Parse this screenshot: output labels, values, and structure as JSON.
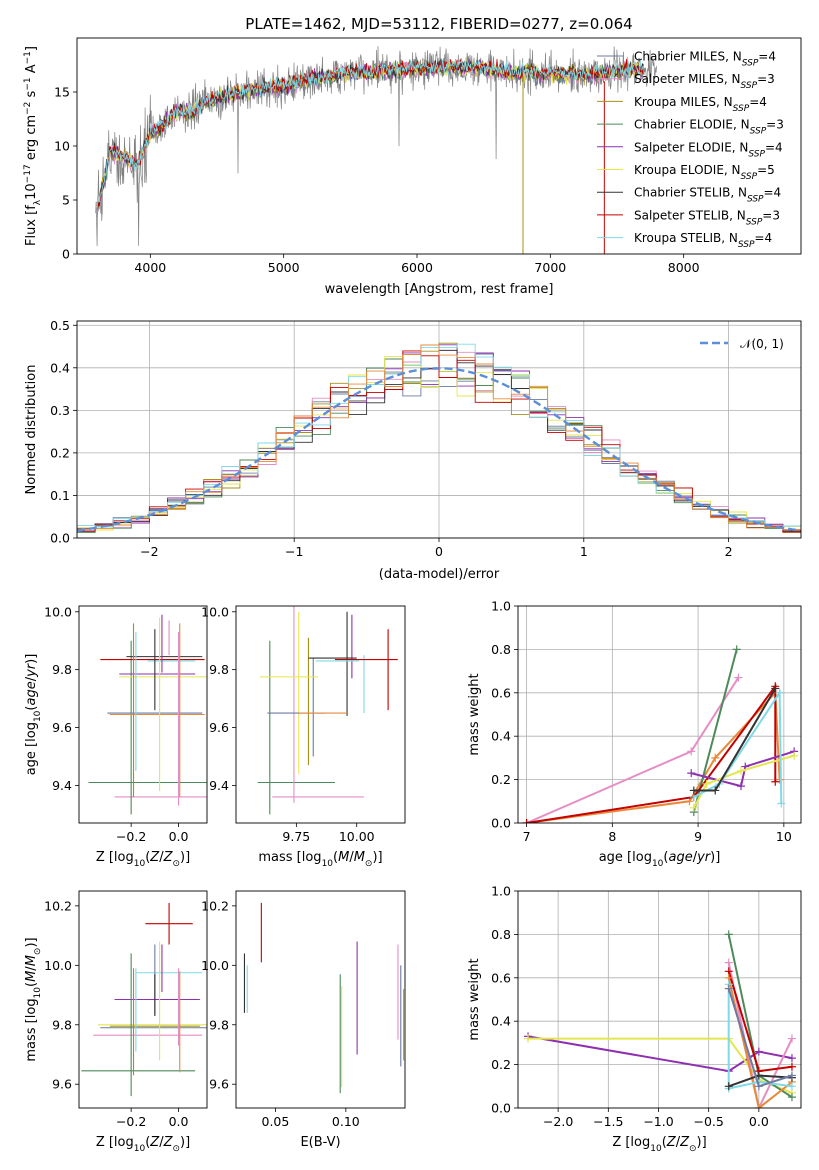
{
  "chart_data": [
    {
      "type": "line",
      "title": "PLATE=1462, MJD=53112, FIBERID=0277, z=0.064",
      "xlabel": "wavelength [Angstrom, rest frame]",
      "ylabel": "Flux [fλ10⁻¹⁷ erg cm⁻² s⁻¹ A⁻¹]",
      "xlim": [
        3450,
        8880
      ],
      "ylim": [
        0,
        20
      ],
      "xticks": [
        4000,
        5000,
        6000,
        7000,
        8000
      ],
      "yticks": [
        0,
        5,
        10,
        15
      ],
      "legend_position": "top-right",
      "grid": false,
      "spectrum_anchors": {
        "x": [
          3600,
          3700,
          3800,
          3900,
          3950,
          4000,
          4100,
          4200,
          4300,
          4400,
          4600,
          4800,
          5000,
          5200,
          5500,
          5800,
          6000,
          6300,
          6500,
          6700,
          7000,
          7300,
          7600,
          7800
        ],
        "y": [
          4,
          9.5,
          9,
          8.2,
          9.8,
          11,
          12,
          13.2,
          13,
          14,
          14.8,
          15.2,
          15.6,
          16.2,
          16.8,
          17,
          17.2,
          17.3,
          17.2,
          16.8,
          16.7,
          16.6,
          17.1,
          16.9
        ]
      },
      "series": [
        {
          "name": "Chabrier MILES, N_SSP=4",
          "color": "#6c7ba3"
        },
        {
          "name": "Salpeter MILES, N_SSP=3",
          "color": "#e58ec3"
        },
        {
          "name": "Kroupa MILES, N_SSP=4",
          "color": "#a6901a"
        },
        {
          "name": "Chabrier ELODIE, N_SSP=3",
          "color": "#4d8a5a"
        },
        {
          "name": "Salpeter ELODIE, N_SSP=4",
          "color": "#8e30b0"
        },
        {
          "name": "Kroupa ELODIE, N_SSP=5",
          "color": "#e4e64c"
        },
        {
          "name": "Chabrier STELIB, N_SSP=4",
          "color": "#333333"
        },
        {
          "name": "Salpeter STELIB, N_SSP=3",
          "color": "#c40000"
        },
        {
          "name": "Kroupa STELIB, N_SSP=4",
          "color": "#7fd9e6"
        }
      ]
    },
    {
      "type": "bar",
      "xlabel": "(data-model)/error",
      "ylabel": "Normed distribution",
      "xlim": [
        -2.5,
        2.5
      ],
      "ylim": [
        0,
        0.51
      ],
      "xticks": [
        -2,
        -1,
        0,
        1,
        2
      ],
      "yticks": [
        0.0,
        0.1,
        0.2,
        0.3,
        0.4,
        0.5
      ],
      "grid": true,
      "legend_position": "top-right",
      "gaussian_label": "𝒩(0, 1)",
      "gaussian_color": "#5b8fd9",
      "bin_width": 0.125,
      "series_colors": [
        "#6c7ba3",
        "#e58ec3",
        "#a6901a",
        "#4d8a5a",
        "#8e30b0",
        "#e4e64c",
        "#333333",
        "#c40000",
        "#7fd9e6",
        "#e8893a"
      ]
    },
    {
      "type": "scatter",
      "xlabel": "Z [log10(Z/Z⊙)]",
      "ylabel": "age  [log10(age/yr)]",
      "xlim": [
        -0.42,
        0.12
      ],
      "ylim": [
        9.27,
        10.02
      ],
      "xticks": [
        -0.2,
        0.0
      ],
      "xticklabels": [
        "−0.2",
        "0.0"
      ],
      "yticks": [
        9.4,
        9.6,
        9.8,
        10.0
      ],
      "points": [
        {
          "x": -0.08,
          "xerr": 0.3,
          "y": 9.41,
          "yerr": 0.0,
          "color": "#4d8a5a"
        },
        {
          "x": -0.05,
          "xerr": 0.22,
          "y": 9.36,
          "yerr": 0.0,
          "color": "#e58ec3"
        },
        {
          "x": -0.2,
          "xerr": 0.0,
          "y": 9.6,
          "yerr": 0.3,
          "color": "#4d8a5a"
        },
        {
          "x": -0.1,
          "xerr": 0.2,
          "y": 9.65,
          "yerr": 0.0,
          "color": "#6c7ba3"
        },
        {
          "x": -0.09,
          "xerr": 0.2,
          "y": 9.645,
          "yerr": 0.0,
          "color": "#e8893a"
        },
        {
          "x": -0.05,
          "xerr": 0.2,
          "y": 9.775,
          "yerr": 0.0,
          "color": "#e4e64c"
        },
        {
          "x": -0.09,
          "xerr": 0.16,
          "y": 9.785,
          "yerr": 0.0,
          "color": "#8e30b0"
        },
        {
          "x": -0.11,
          "xerr": 0.22,
          "y": 9.835,
          "yerr": 0.0,
          "color": "#c40000"
        },
        {
          "x": -0.06,
          "xerr": 0.16,
          "y": 9.845,
          "yerr": 0.0,
          "color": "#333333"
        },
        {
          "x": -0.03,
          "xerr": 0.1,
          "y": 9.83,
          "yerr": 0.0,
          "color": "#7fd9e6"
        },
        {
          "x": -0.19,
          "xerr": 0.0,
          "y": 9.66,
          "yerr": 0.3,
          "color": "#a6901a"
        },
        {
          "x": -0.18,
          "xerr": 0.0,
          "y": 9.69,
          "yerr": 0.24,
          "color": "#7fd9e6"
        },
        {
          "x": -0.1,
          "xerr": 0.0,
          "y": 9.8,
          "yerr": 0.14,
          "color": "#333333"
        },
        {
          "x": -0.08,
          "xerr": 0.0,
          "y": 9.68,
          "yerr": 0.3,
          "color": "#e4e64c"
        },
        {
          "x": -0.07,
          "xerr": 0.0,
          "y": 9.89,
          "yerr": 0.1,
          "color": "#8e30b0"
        },
        {
          "x": -0.04,
          "xerr": 0.0,
          "y": 9.91,
          "yerr": 0.06,
          "color": "#e58ec3"
        },
        {
          "x": 0.0,
          "xerr": 0.0,
          "y": 9.63,
          "yerr": 0.3,
          "color": "#e58ec3"
        },
        {
          "x": 0.005,
          "xerr": 0.0,
          "y": 9.66,
          "yerr": 0.3,
          "color": "#e8893a"
        }
      ]
    },
    {
      "type": "scatter",
      "xlabel": "mass [log10(M/M⊙)]",
      "xlim": [
        9.5,
        10.2
      ],
      "ylim": [
        9.27,
        10.02
      ],
      "xticks": [
        9.75,
        10.0
      ],
      "xticklabels": [
        "9.75",
        "10.00"
      ],
      "yticks": [
        9.4,
        9.6,
        9.8,
        10.0
      ],
      "points": [
        {
          "x": 9.75,
          "xerr": 0.16,
          "y": 9.41,
          "yerr": 0.0,
          "color": "#4d8a5a"
        },
        {
          "x": 9.84,
          "xerr": 0.19,
          "y": 9.36,
          "yerr": 0.0,
          "color": "#e58ec3"
        },
        {
          "x": 9.64,
          "xerr": 0.0,
          "y": 9.6,
          "yerr": 0.3,
          "color": "#4d8a5a"
        },
        {
          "x": 9.74,
          "xerr": 0.0,
          "y": 9.69,
          "yerr": 0.35,
          "color": "#e58ec3"
        },
        {
          "x": 9.76,
          "xerr": 0.0,
          "y": 9.72,
          "yerr": 0.28,
          "color": "#e4e64c"
        },
        {
          "x": 9.8,
          "xerr": 0.0,
          "y": 9.69,
          "yerr": 0.22,
          "color": "#a6901a"
        },
        {
          "x": 9.82,
          "xerr": 0.0,
          "y": 9.67,
          "yerr": 0.17,
          "color": "#6c7ba3"
        },
        {
          "x": 9.96,
          "xerr": 0.0,
          "y": 9.82,
          "yerr": 0.18,
          "color": "#333333"
        },
        {
          "x": 9.98,
          "xerr": 0.0,
          "y": 9.88,
          "yerr": 0.11,
          "color": "#8e30b0"
        },
        {
          "x": 10.13,
          "xerr": 0.0,
          "y": 9.8,
          "yerr": 0.14,
          "color": "#c40000"
        },
        {
          "x": 10.03,
          "xerr": 0.0,
          "y": 9.75,
          "yerr": 0.1,
          "color": "#7fd9e6"
        },
        {
          "x": 9.75,
          "xerr": 0.12,
          "y": 9.65,
          "yerr": 0.0,
          "color": "#6c7ba3"
        },
        {
          "x": 9.72,
          "xerr": 0.12,
          "y": 9.775,
          "yerr": 0.0,
          "color": "#e4e64c"
        },
        {
          "x": 9.9,
          "xerr": 0.1,
          "y": 9.84,
          "yerr": 0.0,
          "color": "#333333"
        },
        {
          "x": 10.04,
          "xerr": 0.13,
          "y": 9.835,
          "yerr": 0.0,
          "color": "#c40000"
        },
        {
          "x": 9.92,
          "xerr": 0.09,
          "y": 9.83,
          "yerr": 0.0,
          "color": "#7fd9e6"
        },
        {
          "x": 9.86,
          "xerr": 0.1,
          "y": 9.65,
          "yerr": 0.0,
          "color": "#e8893a"
        }
      ]
    },
    {
      "type": "line",
      "xlabel": "age  [log10(age/yr)]",
      "ylabel": "mass weight",
      "xlim": [
        6.9,
        10.2
      ],
      "ylim": [
        0,
        1
      ],
      "xticks": [
        7,
        8,
        9,
        10
      ],
      "yticks": [
        0.0,
        0.2,
        0.4,
        0.6,
        0.8,
        1.0
      ],
      "grid": true,
      "series": [
        {
          "color": "#e8893a",
          "x": [
            7.0,
            8.9,
            9.2,
            9.9,
            9.95
          ],
          "y": [
            0.0,
            0.1,
            0.3,
            0.6,
            0.2
          ]
        },
        {
          "color": "#e58ec3",
          "x": [
            7.0,
            8.92,
            9.47
          ],
          "y": [
            0.0,
            0.33,
            0.67
          ]
        },
        {
          "color": "#4d8a5a",
          "x": [
            8.95,
            9.45
          ],
          "y": [
            0.05,
            0.8
          ]
        },
        {
          "color": "#c40000",
          "x": [
            7.0,
            8.95,
            9.9,
            9.9
          ],
          "y": [
            0.0,
            0.12,
            0.63,
            0.19
          ]
        },
        {
          "color": "#8e30b0",
          "x": [
            8.92,
            9.5,
            9.55,
            10.12
          ],
          "y": [
            0.23,
            0.17,
            0.26,
            0.33
          ]
        },
        {
          "color": "#e4e64c",
          "x": [
            8.95,
            9.1,
            9.5,
            10.12
          ],
          "y": [
            0.07,
            0.18,
            0.24,
            0.31
          ]
        },
        {
          "color": "#7fd9e6",
          "x": [
            8.95,
            9.25,
            9.95,
            9.97
          ],
          "y": [
            0.12,
            0.18,
            0.6,
            0.09
          ]
        },
        {
          "color": "#333333",
          "x": [
            8.95,
            9.2,
            9.9
          ],
          "y": [
            0.15,
            0.15,
            0.62
          ]
        }
      ]
    },
    {
      "type": "scatter",
      "xlabel": "Z [log10(Z/Z⊙)]",
      "ylabel": "mass [log10(M/M⊙)]",
      "xlim": [
        -0.42,
        0.12
      ],
      "ylim": [
        9.52,
        10.25
      ],
      "xticks": [
        -0.2,
        0.0
      ],
      "xticklabels": [
        "−0.2",
        "0.0"
      ],
      "yticks": [
        9.6,
        9.8,
        10.0,
        10.2
      ],
      "points": [
        {
          "x": -0.04,
          "xerr": 0.1,
          "y": 10.14,
          "yerr": 0.07,
          "color": "#c40000"
        },
        {
          "x": -0.04,
          "xerr": 0.14,
          "y": 9.975,
          "yerr": 0.0,
          "color": "#7fd9e6"
        },
        {
          "x": -0.1,
          "xerr": 0.0,
          "y": 9.95,
          "yerr": 0.12,
          "color": "#6c7ba3"
        },
        {
          "x": -0.09,
          "xerr": 0.18,
          "y": 9.885,
          "yerr": 0.0,
          "color": "#8e30b0"
        },
        {
          "x": -0.09,
          "xerr": 0.25,
          "y": 9.8,
          "yerr": 0.0,
          "color": "#e4e64c"
        },
        {
          "x": -0.1,
          "xerr": 0.19,
          "y": 9.795,
          "yerr": 0.0,
          "color": "#a6901a"
        },
        {
          "x": -0.1,
          "xerr": 0.23,
          "y": 9.79,
          "yerr": 0.0,
          "color": "#6c7ba3"
        },
        {
          "x": -0.13,
          "xerr": 0.23,
          "y": 9.765,
          "yerr": 0.0,
          "color": "#e58ec3"
        },
        {
          "x": -0.17,
          "xerr": 0.24,
          "y": 9.645,
          "yerr": 0.0,
          "color": "#4d8a5a"
        },
        {
          "x": -0.2,
          "xerr": 0.0,
          "y": 9.8,
          "yerr": 0.24,
          "color": "#4d8a5a"
        },
        {
          "x": -0.19,
          "xerr": 0.0,
          "y": 9.81,
          "yerr": 0.18,
          "color": "#a6901a"
        },
        {
          "x": -0.18,
          "xerr": 0.0,
          "y": 9.85,
          "yerr": 0.14,
          "color": "#7fd9e6"
        },
        {
          "x": -0.08,
          "xerr": 0.0,
          "y": 9.88,
          "yerr": 0.2,
          "color": "#e4e64c"
        },
        {
          "x": -0.07,
          "xerr": 0.0,
          "y": 9.99,
          "yerr": 0.08,
          "color": "#8e30b0"
        },
        {
          "x": -0.1,
          "xerr": 0.0,
          "y": 9.9,
          "yerr": 0.07,
          "color": "#333333"
        },
        {
          "x": 0.0,
          "xerr": 0.0,
          "y": 9.86,
          "yerr": 0.13,
          "color": "#e58ec3"
        },
        {
          "x": 0.005,
          "xerr": 0.0,
          "y": 9.81,
          "yerr": 0.17,
          "color": "#e8893a"
        }
      ]
    },
    {
      "type": "scatter",
      "xlabel": "E(B-V)",
      "xlim": [
        0.022,
        0.142
      ],
      "ylim": [
        9.52,
        10.25
      ],
      "xticks": [
        0.05,
        0.1
      ],
      "xticklabels": [
        "0.05",
        "0.10"
      ],
      "yticks": [
        9.6,
        9.8,
        10.0,
        10.2
      ],
      "points": [
        {
          "x": 0.028,
          "xerr": 0.0,
          "y": 9.94,
          "yerr": 0.1,
          "color": "#333333"
        },
        {
          "x": 0.03,
          "xerr": 0.0,
          "y": 9.92,
          "yerr": 0.08,
          "color": "#7fd9e6"
        },
        {
          "x": 0.04,
          "xerr": 0.0,
          "y": 10.11,
          "yerr": 0.1,
          "color": "#c40000"
        },
        {
          "x": 0.096,
          "xerr": 0.0,
          "y": 9.77,
          "yerr": 0.2,
          "color": "#4d8a5a"
        },
        {
          "x": 0.097,
          "xerr": 0.0,
          "y": 9.76,
          "yerr": 0.17,
          "color": "#e4e64c"
        },
        {
          "x": 0.108,
          "xerr": 0.0,
          "y": 9.89,
          "yerr": 0.19,
          "color": "#8e30b0"
        },
        {
          "x": 0.137,
          "xerr": 0.0,
          "y": 9.91,
          "yerr": 0.16,
          "color": "#e58ec3"
        },
        {
          "x": 0.139,
          "xerr": 0.0,
          "y": 9.83,
          "yerr": 0.17,
          "color": "#6c7ba3"
        },
        {
          "x": 0.141,
          "xerr": 0.0,
          "y": 9.8,
          "yerr": 0.12,
          "color": "#e8893a"
        }
      ]
    },
    {
      "type": "line",
      "xlabel": "Z [log10(Z/Z⊙)]",
      "ylabel": "mass weight",
      "xlim": [
        -2.4,
        0.42
      ],
      "ylim": [
        0,
        1
      ],
      "xticks": [
        -2.0,
        -1.5,
        -1.0,
        -0.5,
        0.0
      ],
      "xticklabels": [
        "−2.0",
        "−1.5",
        "−1.0",
        "−0.5",
        "0.0"
      ],
      "yticks": [
        0.0,
        0.2,
        0.4,
        0.6,
        0.8,
        1.0
      ],
      "grid": true,
      "series": [
        {
          "color": "#8e30b0",
          "x": [
            -2.3,
            -0.3,
            0.0,
            0.33
          ],
          "y": [
            0.33,
            0.17,
            0.26,
            0.23
          ]
        },
        {
          "color": "#e4e64c",
          "x": [
            -2.3,
            -0.3,
            0.0,
            0.33
          ],
          "y": [
            0.32,
            0.32,
            0.13,
            0.07
          ]
        },
        {
          "color": "#4d8a5a",
          "x": [
            -0.3,
            0.0,
            0.33
          ],
          "y": [
            0.8,
            0.15,
            0.05
          ]
        },
        {
          "color": "#e58ec3",
          "x": [
            -0.3,
            0.0,
            0.33
          ],
          "y": [
            0.67,
            0.0,
            0.32
          ]
        },
        {
          "color": "#c40000",
          "x": [
            -0.3,
            0.0,
            0.33
          ],
          "y": [
            0.63,
            0.17,
            0.19
          ]
        },
        {
          "color": "#e8893a",
          "x": [
            -0.3,
            0.0,
            0.33
          ],
          "y": [
            0.6,
            0.0,
            0.12
          ]
        },
        {
          "color": "#7fd9e6",
          "x": [
            -0.3,
            -0.3,
            0.0,
            0.33
          ],
          "y": [
            0.57,
            0.09,
            0.12,
            0.1
          ]
        },
        {
          "color": "#333333",
          "x": [
            -0.3,
            0.0,
            0.33
          ],
          "y": [
            0.1,
            0.15,
            0.14
          ]
        },
        {
          "color": "#6c7ba3",
          "x": [
            -0.3,
            0.0,
            0.33
          ],
          "y": [
            0.55,
            0.1,
            0.15
          ]
        }
      ]
    }
  ]
}
